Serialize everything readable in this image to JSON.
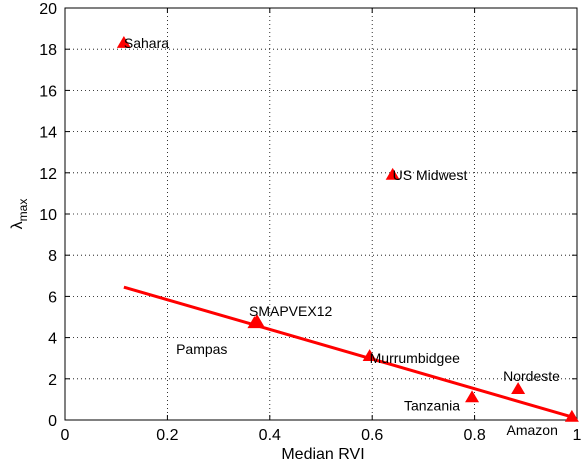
{
  "chart_data": {
    "type": "scatter",
    "xlabel": "Median RVI",
    "ylabel_main": "λ",
    "ylabel_sub": "max",
    "xlim": [
      0,
      1
    ],
    "ylim": [
      0,
      20
    ],
    "xticks": [
      0,
      0.2,
      0.4,
      0.6,
      0.8,
      1
    ],
    "xtick_labels": [
      "0",
      "0.2",
      "0.4",
      "0.6",
      "0.8",
      "1"
    ],
    "yticks": [
      0,
      2,
      4,
      6,
      8,
      10,
      12,
      14,
      16,
      18,
      20
    ],
    "ytick_labels": [
      "0",
      "2",
      "4",
      "6",
      "8",
      "10",
      "12",
      "14",
      "16",
      "18",
      "20"
    ],
    "grid": true,
    "marker": "triangle",
    "marker_color": "#ff0000",
    "points": [
      {
        "label": "Sahara",
        "x": 0.115,
        "y": 18.3
      },
      {
        "label": "US Midwest",
        "x": 0.64,
        "y": 11.9
      },
      {
        "label": "SMAPVEX12",
        "x": 0.375,
        "y": 4.8
      },
      {
        "label": "Pampas",
        "x": 0.37,
        "y": 4.7
      },
      {
        "label": "Murrumbidgee",
        "x": 0.595,
        "y": 3.1
      },
      {
        "label": "Nordeste",
        "x": 0.885,
        "y": 1.5
      },
      {
        "label": "Tanzania",
        "x": 0.795,
        "y": 1.1
      },
      {
        "label": "Amazon",
        "x": 0.99,
        "y": 0.15
      }
    ],
    "fit_line": {
      "x": [
        0.115,
        0.99
      ],
      "y": [
        6.45,
        0.15
      ],
      "color": "#ff0000"
    }
  }
}
